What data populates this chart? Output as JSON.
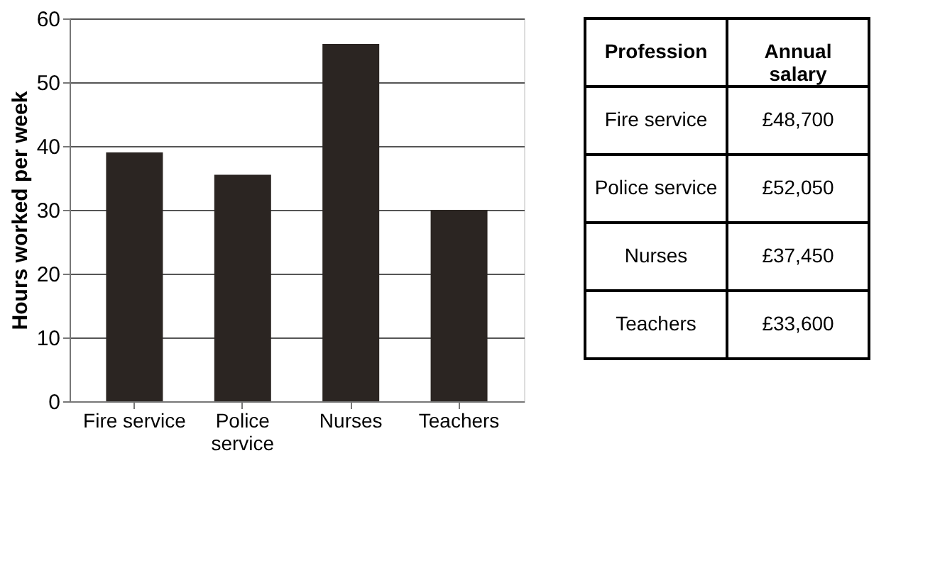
{
  "chart_data": [
    {
      "type": "bar",
      "ylabel": "Hours worked per week",
      "categories": [
        "Fire service",
        "Police service",
        "Nurses",
        "Teachers"
      ],
      "values": [
        39,
        35.5,
        56,
        30
      ],
      "color": "#2b2522",
      "ylim": [
        0,
        60
      ],
      "yticks": [
        0,
        10,
        20,
        30,
        40,
        50,
        60
      ],
      "grid": "y"
    },
    {
      "type": "other",
      "annotations": [
        "Profession",
        "Annual salary"
      ],
      "categories": [
        "Fire service",
        "Police service",
        "Nurses",
        "Teachers"
      ],
      "value_labels": [
        "£48,700",
        "£52,050",
        "£37,450",
        "£33,600"
      ]
    }
  ]
}
